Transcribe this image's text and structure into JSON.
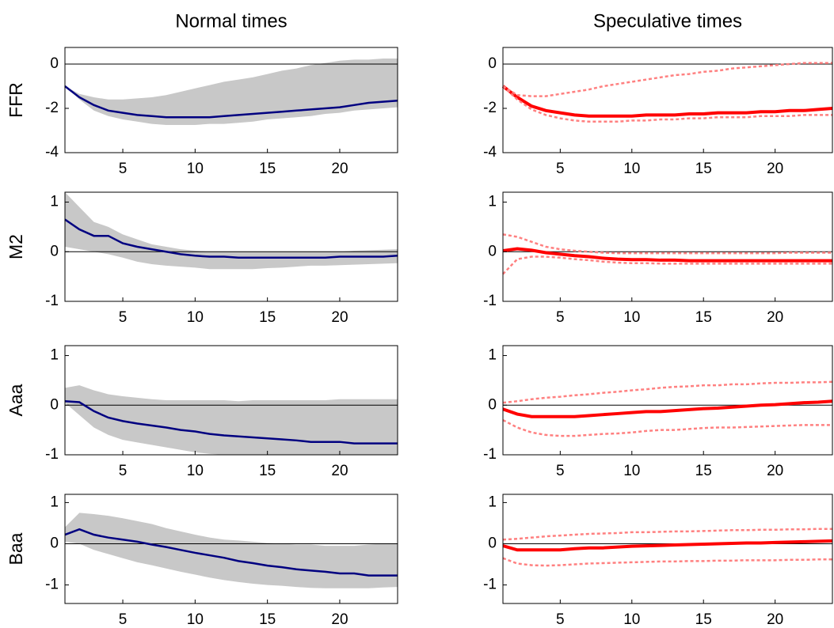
{
  "chart_data": [
    {
      "type": "line",
      "title": "Normal times",
      "ylabel": "FFR",
      "x": [
        1,
        2,
        3,
        4,
        5,
        6,
        7,
        8,
        9,
        10,
        11,
        12,
        13,
        14,
        15,
        16,
        17,
        18,
        19,
        20,
        21,
        22,
        23,
        24
      ],
      "xlim": [
        1,
        24
      ],
      "xticks": [
        5,
        10,
        15,
        20
      ],
      "ylim": [
        -4,
        0.75
      ],
      "yticks": [
        -4,
        -2,
        0
      ],
      "zero_line": true,
      "band": {
        "color": "#c8c8c8",
        "lower": [
          -1,
          -1.6,
          -2.1,
          -2.35,
          -2.5,
          -2.6,
          -2.7,
          -2.75,
          -2.75,
          -2.75,
          -2.7,
          -2.7,
          -2.65,
          -2.6,
          -2.5,
          -2.45,
          -2.4,
          -2.35,
          -2.25,
          -2.2,
          -2.1,
          -2.05,
          -2.0,
          -1.95
        ],
        "upper": [
          -1,
          -1.35,
          -1.5,
          -1.6,
          -1.6,
          -1.55,
          -1.5,
          -1.4,
          -1.25,
          -1.1,
          -0.95,
          -0.8,
          -0.7,
          -0.6,
          -0.45,
          -0.3,
          -0.2,
          -0.05,
          0.05,
          0.15,
          0.2,
          0.2,
          0.25,
          0.25
        ]
      },
      "series": [
        {
          "color": "#000080",
          "width": 2.5,
          "dash": false,
          "values": [
            -1,
            -1.5,
            -1.85,
            -2.1,
            -2.2,
            -2.3,
            -2.35,
            -2.4,
            -2.4,
            -2.4,
            -2.4,
            -2.35,
            -2.3,
            -2.25,
            -2.2,
            -2.15,
            -2.1,
            -2.05,
            -2.0,
            -1.95,
            -1.85,
            -1.75,
            -1.7,
            -1.65
          ]
        }
      ]
    },
    {
      "type": "line",
      "title": "Speculative times",
      "x": [
        1,
        2,
        3,
        4,
        5,
        6,
        7,
        8,
        9,
        10,
        11,
        12,
        13,
        14,
        15,
        16,
        17,
        18,
        19,
        20,
        21,
        22,
        23,
        24
      ],
      "xlim": [
        1,
        24
      ],
      "xticks": [
        5,
        10,
        15,
        20
      ],
      "ylim": [
        -4,
        0.75
      ],
      "yticks": [
        -4,
        -2,
        0
      ],
      "zero_line": true,
      "series": [
        {
          "color": "#ff0000",
          "width": 4,
          "dash": false,
          "values": [
            -1,
            -1.5,
            -1.9,
            -2.1,
            -2.2,
            -2.3,
            -2.35,
            -2.35,
            -2.35,
            -2.35,
            -2.3,
            -2.3,
            -2.3,
            -2.25,
            -2.25,
            -2.2,
            -2.2,
            -2.2,
            -2.15,
            -2.15,
            -2.1,
            -2.1,
            -2.05,
            -2.0
          ]
        },
        {
          "color": "#ff8080",
          "width": 2.5,
          "dash": true,
          "values": [
            -1,
            -1.6,
            -2.05,
            -2.3,
            -2.45,
            -2.55,
            -2.6,
            -2.6,
            -2.6,
            -2.55,
            -2.55,
            -2.5,
            -2.5,
            -2.45,
            -2.45,
            -2.4,
            -2.4,
            -2.4,
            -2.35,
            -2.35,
            -2.35,
            -2.3,
            -2.3,
            -2.3
          ]
        },
        {
          "color": "#ff8080",
          "width": 2.5,
          "dash": true,
          "values": [
            -1,
            -1.4,
            -1.45,
            -1.45,
            -1.35,
            -1.25,
            -1.15,
            -1.0,
            -0.9,
            -0.8,
            -0.7,
            -0.6,
            -0.5,
            -0.45,
            -0.35,
            -0.3,
            -0.2,
            -0.15,
            -0.1,
            -0.05,
            0,
            0.05,
            0.05,
            0.05
          ]
        }
      ]
    },
    {
      "type": "line",
      "ylabel": "M2",
      "x": [
        1,
        2,
        3,
        4,
        5,
        6,
        7,
        8,
        9,
        10,
        11,
        12,
        13,
        14,
        15,
        16,
        17,
        18,
        19,
        20,
        21,
        22,
        23,
        24
      ],
      "xlim": [
        1,
        24
      ],
      "xticks": [
        5,
        10,
        15,
        20
      ],
      "ylim": [
        -1,
        1.2
      ],
      "yticks": [
        -1,
        0,
        1
      ],
      "zero_line": true,
      "band": {
        "color": "#c8c8c8",
        "lower": [
          0.1,
          0.05,
          0.0,
          -0.05,
          -0.12,
          -0.2,
          -0.25,
          -0.28,
          -0.3,
          -0.32,
          -0.35,
          -0.35,
          -0.35,
          -0.35,
          -0.33,
          -0.32,
          -0.3,
          -0.28,
          -0.28,
          -0.27,
          -0.26,
          -0.25,
          -0.24,
          -0.23
        ],
        "upper": [
          1.2,
          0.9,
          0.6,
          0.5,
          0.35,
          0.25,
          0.15,
          0.1,
          0.05,
          0.02,
          0.0,
          0.0,
          0.0,
          0.0,
          0.0,
          0.0,
          0.0,
          0.0,
          0.0,
          0.0,
          0.02,
          0.03,
          0.04,
          0.05
        ]
      },
      "series": [
        {
          "color": "#000080",
          "width": 2.5,
          "dash": false,
          "values": [
            0.65,
            0.45,
            0.32,
            0.32,
            0.17,
            0.1,
            0.05,
            0.0,
            -0.05,
            -0.08,
            -0.1,
            -0.1,
            -0.12,
            -0.12,
            -0.12,
            -0.12,
            -0.12,
            -0.12,
            -0.12,
            -0.1,
            -0.1,
            -0.1,
            -0.1,
            -0.08
          ]
        }
      ]
    },
    {
      "type": "line",
      "x": [
        1,
        2,
        3,
        4,
        5,
        6,
        7,
        8,
        9,
        10,
        11,
        12,
        13,
        14,
        15,
        16,
        17,
        18,
        19,
        20,
        21,
        22,
        23,
        24
      ],
      "xlim": [
        1,
        24
      ],
      "xticks": [
        5,
        10,
        15,
        20
      ],
      "ylim": [
        -1,
        1.2
      ],
      "yticks": [
        -1,
        0,
        1
      ],
      "zero_line": true,
      "series": [
        {
          "color": "#ff0000",
          "width": 4,
          "dash": false,
          "values": [
            0.02,
            0.06,
            0.03,
            -0.02,
            -0.05,
            -0.08,
            -0.1,
            -0.13,
            -0.15,
            -0.16,
            -0.16,
            -0.17,
            -0.17,
            -0.18,
            -0.18,
            -0.18,
            -0.18,
            -0.18,
            -0.18,
            -0.18,
            -0.18,
            -0.18,
            -0.18,
            -0.18
          ]
        },
        {
          "color": "#ff8080",
          "width": 2.5,
          "dash": true,
          "values": [
            0.35,
            0.3,
            0.2,
            0.1,
            0.05,
            0.02,
            0.0,
            -0.02,
            -0.03,
            -0.03,
            -0.03,
            -0.03,
            -0.03,
            -0.03,
            -0.03,
            -0.03,
            -0.03,
            -0.03,
            -0.03,
            -0.03,
            -0.02,
            -0.02,
            -0.02,
            -0.02
          ]
        },
        {
          "color": "#ff8080",
          "width": 2.5,
          "dash": true,
          "values": [
            -0.45,
            -0.15,
            -0.1,
            -0.1,
            -0.12,
            -0.15,
            -0.17,
            -0.2,
            -0.22,
            -0.23,
            -0.23,
            -0.24,
            -0.24,
            -0.24,
            -0.24,
            -0.24,
            -0.24,
            -0.24,
            -0.24,
            -0.24,
            -0.24,
            -0.24,
            -0.24,
            -0.24
          ]
        }
      ]
    },
    {
      "type": "line",
      "ylabel": "Aaa",
      "x": [
        1,
        2,
        3,
        4,
        5,
        6,
        7,
        8,
        9,
        10,
        11,
        12,
        13,
        14,
        15,
        16,
        17,
        18,
        19,
        20,
        21,
        22,
        23,
        24
      ],
      "xlim": [
        1,
        24
      ],
      "xticks": [
        5,
        10,
        15,
        20
      ],
      "ylim": [
        -1,
        1.2
      ],
      "yticks": [
        -1,
        0,
        1
      ],
      "zero_line": true,
      "band": {
        "color": "#c8c8c8",
        "lower": [
          0.05,
          -0.2,
          -0.45,
          -0.6,
          -0.7,
          -0.75,
          -0.8,
          -0.85,
          -0.9,
          -0.95,
          -0.98,
          -1,
          -1,
          -1,
          -1,
          -1,
          -1,
          -1,
          -1,
          -1,
          -1,
          -1,
          -1,
          -1
        ],
        "upper": [
          0.35,
          0.4,
          0.3,
          0.22,
          0.18,
          0.15,
          0.12,
          0.1,
          0.1,
          0.1,
          0.1,
          0.1,
          0.08,
          0.1,
          0.1,
          0.1,
          0.1,
          0.1,
          0.1,
          0.12,
          0.12,
          0.12,
          0.12,
          0.12
        ]
      },
      "series": [
        {
          "color": "#000080",
          "width": 2.5,
          "dash": false,
          "values": [
            0.08,
            0.06,
            -0.12,
            -0.25,
            -0.32,
            -0.37,
            -0.41,
            -0.45,
            -0.5,
            -0.53,
            -0.58,
            -0.61,
            -0.63,
            -0.65,
            -0.67,
            -0.69,
            -0.71,
            -0.74,
            -0.74,
            -0.74,
            -0.77,
            -0.77,
            -0.77,
            -0.77
          ]
        }
      ]
    },
    {
      "type": "line",
      "x": [
        1,
        2,
        3,
        4,
        5,
        6,
        7,
        8,
        9,
        10,
        11,
        12,
        13,
        14,
        15,
        16,
        17,
        18,
        19,
        20,
        21,
        22,
        23,
        24
      ],
      "xlim": [
        1,
        24
      ],
      "xticks": [
        5,
        10,
        15,
        20
      ],
      "ylim": [
        -1,
        1.2
      ],
      "yticks": [
        -1,
        0,
        1
      ],
      "zero_line": true,
      "series": [
        {
          "color": "#ff0000",
          "width": 4,
          "dash": false,
          "values": [
            -0.08,
            -0.18,
            -0.23,
            -0.23,
            -0.23,
            -0.23,
            -0.21,
            -0.19,
            -0.17,
            -0.15,
            -0.13,
            -0.13,
            -0.11,
            -0.09,
            -0.07,
            -0.06,
            -0.04,
            -0.02,
            0,
            0.01,
            0.03,
            0.05,
            0.06,
            0.08
          ]
        },
        {
          "color": "#ff8080",
          "width": 2.5,
          "dash": true,
          "values": [
            0.05,
            0.08,
            0.12,
            0.15,
            0.17,
            0.2,
            0.22,
            0.25,
            0.27,
            0.3,
            0.32,
            0.35,
            0.37,
            0.38,
            0.4,
            0.4,
            0.42,
            0.42,
            0.44,
            0.45,
            0.45,
            0.46,
            0.46,
            0.47
          ]
        },
        {
          "color": "#ff8080",
          "width": 2.5,
          "dash": true,
          "values": [
            -0.3,
            -0.45,
            -0.55,
            -0.6,
            -0.62,
            -0.62,
            -0.6,
            -0.58,
            -0.57,
            -0.55,
            -0.52,
            -0.5,
            -0.5,
            -0.48,
            -0.46,
            -0.45,
            -0.45,
            -0.44,
            -0.43,
            -0.42,
            -0.41,
            -0.4,
            -0.4,
            -0.4
          ]
        }
      ]
    },
    {
      "type": "line",
      "ylabel": "Baa",
      "x": [
        1,
        2,
        3,
        4,
        5,
        6,
        7,
        8,
        9,
        10,
        11,
        12,
        13,
        14,
        15,
        16,
        17,
        18,
        19,
        20,
        21,
        22,
        23,
        24
      ],
      "xlim": [
        1,
        24
      ],
      "xticks": [
        5,
        10,
        15,
        20
      ],
      "ylim": [
        -1.45,
        1.2
      ],
      "yticks": [
        -1,
        0,
        1
      ],
      "zero_line": true,
      "band": {
        "color": "#c8c8c8",
        "lower": [
          0.05,
          0.0,
          -0.15,
          -0.25,
          -0.35,
          -0.45,
          -0.52,
          -0.6,
          -0.68,
          -0.75,
          -0.82,
          -0.88,
          -0.93,
          -0.97,
          -1,
          -1.02,
          -1.05,
          -1.07,
          -1.08,
          -1.08,
          -1.08,
          -1.08,
          -1.06,
          -1.05
        ],
        "upper": [
          0.4,
          0.75,
          0.72,
          0.68,
          0.62,
          0.55,
          0.48,
          0.38,
          0.3,
          0.22,
          0.15,
          0.1,
          0.08,
          0.05,
          0.02,
          0,
          -0.02,
          -0.02,
          -0.05,
          -0.05,
          -0.05,
          -0.02,
          0,
          0
        ]
      },
      "series": [
        {
          "color": "#000080",
          "width": 2.5,
          "dash": false,
          "values": [
            0.22,
            0.35,
            0.22,
            0.15,
            0.1,
            0.05,
            -0.02,
            -0.08,
            -0.15,
            -0.22,
            -0.28,
            -0.34,
            -0.42,
            -0.47,
            -0.53,
            -0.57,
            -0.62,
            -0.65,
            -0.68,
            -0.72,
            -0.72,
            -0.77,
            -0.77,
            -0.77
          ]
        }
      ]
    },
    {
      "type": "line",
      "x": [
        1,
        2,
        3,
        4,
        5,
        6,
        7,
        8,
        9,
        10,
        11,
        12,
        13,
        14,
        15,
        16,
        17,
        18,
        19,
        20,
        21,
        22,
        23,
        24
      ],
      "xlim": [
        1,
        24
      ],
      "xticks": [
        5,
        10,
        15,
        20
      ],
      "ylim": [
        -1.45,
        1.2
      ],
      "yticks": [
        -1,
        0,
        1
      ],
      "zero_line": true,
      "series": [
        {
          "color": "#ff0000",
          "width": 4,
          "dash": false,
          "values": [
            -0.05,
            -0.15,
            -0.15,
            -0.15,
            -0.15,
            -0.12,
            -0.1,
            -0.1,
            -0.08,
            -0.06,
            -0.05,
            -0.04,
            -0.03,
            -0.02,
            -0.01,
            0,
            0.01,
            0.02,
            0.02,
            0.03,
            0.04,
            0.05,
            0.06,
            0.07
          ]
        },
        {
          "color": "#ff8080",
          "width": 2.5,
          "dash": true,
          "values": [
            0.1,
            0.12,
            0.15,
            0.18,
            0.2,
            0.22,
            0.24,
            0.25,
            0.26,
            0.28,
            0.28,
            0.29,
            0.3,
            0.3,
            0.31,
            0.32,
            0.33,
            0.33,
            0.34,
            0.34,
            0.35,
            0.35,
            0.36,
            0.36
          ]
        },
        {
          "color": "#ff8080",
          "width": 2.5,
          "dash": true,
          "values": [
            -0.35,
            -0.48,
            -0.52,
            -0.53,
            -0.52,
            -0.5,
            -0.48,
            -0.47,
            -0.46,
            -0.45,
            -0.44,
            -0.43,
            -0.43,
            -0.42,
            -0.42,
            -0.41,
            -0.41,
            -0.4,
            -0.4,
            -0.4,
            -0.39,
            -0.39,
            -0.38,
            -0.38
          ]
        }
      ]
    }
  ]
}
